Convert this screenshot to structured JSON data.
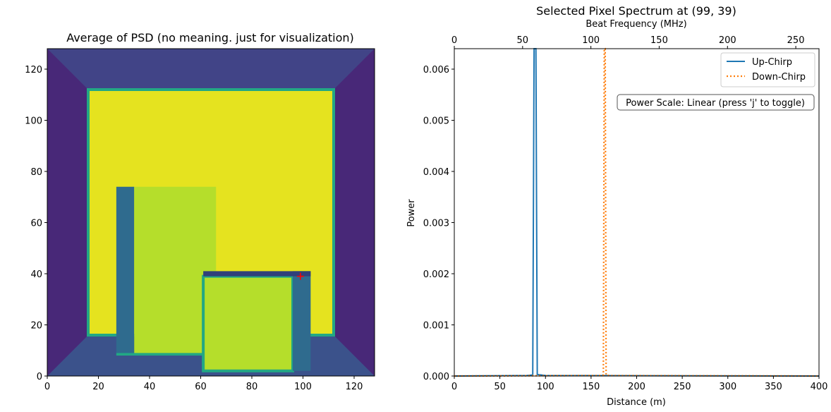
{
  "chart_data": [
    {
      "type": "heatmap",
      "title": "Average of PSD (no meaning. just for visualization)",
      "xlim": [
        0,
        128
      ],
      "ylim": [
        0,
        128
      ],
      "xticks": [
        0,
        20,
        40,
        60,
        80,
        100,
        120
      ],
      "yticks": [
        0,
        20,
        40,
        60,
        80,
        100,
        120
      ],
      "colormap": "viridis",
      "colors": {
        "low": "#46327e",
        "mid": "#3f4a8a",
        "border": "#22a884",
        "high": "#e5e31f",
        "med_high": "#b5de2b",
        "edge": "#2f6b8e"
      },
      "marker": {
        "x": 99,
        "y": 39,
        "symbol": "+",
        "color": "#ff0000"
      },
      "regions": {
        "back_wall": {
          "x": [
            16,
            112
          ],
          "y": [
            16,
            112
          ]
        },
        "left_box_side": {
          "x": [
            27,
            34
          ],
          "y": [
            8,
            74
          ]
        },
        "left_box_front": {
          "x": [
            34,
            66
          ],
          "y": [
            8,
            74
          ]
        },
        "right_box_top": {
          "x": [
            61,
            103
          ],
          "y": [
            39,
            41
          ]
        },
        "right_box_front": {
          "x": [
            61,
            96
          ],
          "y": [
            2,
            39
          ]
        },
        "right_box_side": {
          "x": [
            96,
            103
          ],
          "y": [
            2,
            41
          ]
        }
      }
    },
    {
      "type": "line",
      "title": "Selected Pixel Spectrum at (99, 39)",
      "xlabel": "Distance (m)",
      "ylabel": "Power",
      "top_xlabel": "Beat Frequency (MHz)",
      "xlim": [
        0,
        400
      ],
      "ylim": [
        0,
        0.0064
      ],
      "xticks": [
        0,
        50,
        100,
        150,
        200,
        250,
        300,
        350,
        400
      ],
      "yticks": [
        0.0,
        0.001,
        0.002,
        0.003,
        0.004,
        0.005,
        0.006
      ],
      "ytick_labels": [
        "0.000",
        "0.001",
        "0.002",
        "0.003",
        "0.004",
        "0.005",
        "0.006"
      ],
      "top_xlim": [
        0,
        267
      ],
      "top_xticks": [
        0,
        50,
        100,
        150,
        200,
        250
      ],
      "legend_position": "top-right",
      "annotation": "Power Scale: Linear (press 'j' to toggle)",
      "series": [
        {
          "name": "Up-Chirp",
          "color": "#1f77b4",
          "style": "solid",
          "x": [
            0,
            80,
            86,
            87.5,
            88.5,
            89.5,
            91,
            100,
            400
          ],
          "y": [
            0,
            1e-05,
            2e-05,
            0.0064,
            0.0064,
            0.0064,
            3e-05,
            1e-05,
            0
          ]
        },
        {
          "name": "Down-Chirp",
          "color": "#ff7f0e",
          "style": "dotted",
          "x": [
            0,
            160,
            163.5,
            164.5,
            165.5,
            166.5,
            170,
            400
          ],
          "y": [
            0,
            1e-05,
            2e-05,
            0.0064,
            0.0064,
            2e-05,
            1e-05,
            0
          ]
        }
      ]
    }
  ]
}
